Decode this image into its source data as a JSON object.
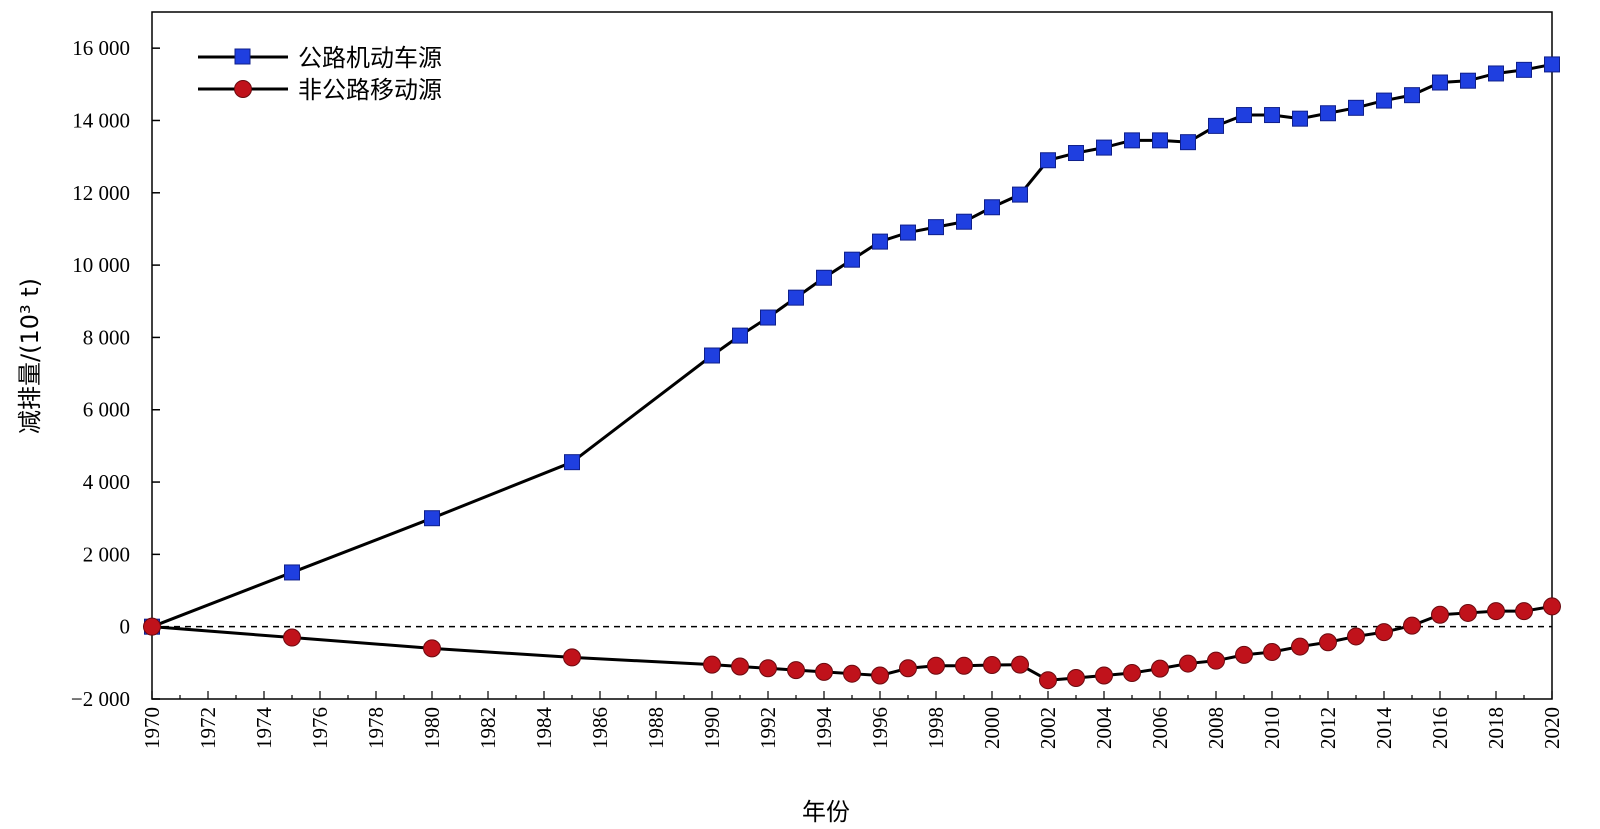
{
  "chart_data": {
    "type": "line",
    "xlabel": "年份",
    "ylabel": "减排量/(10³ t)",
    "xlim": [
      1970,
      2020
    ],
    "ylim": [
      -2000,
      17000
    ],
    "x_ticks": [
      1970,
      1972,
      1974,
      1976,
      1978,
      1980,
      1982,
      1984,
      1986,
      1988,
      1990,
      1992,
      1994,
      1996,
      1998,
      2000,
      2002,
      2004,
      2006,
      2008,
      2010,
      2012,
      2014,
      2016,
      2018,
      2020
    ],
    "y_ticks": [
      -2000,
      0,
      2000,
      4000,
      6000,
      8000,
      10000,
      12000,
      14000,
      16000
    ],
    "y_tick_labels": [
      "−2 000",
      "0",
      "2 000",
      "4 000",
      "6 000",
      "8 000",
      "10 000",
      "12 000",
      "14 000",
      "16 000"
    ],
    "zero_reference_line": "dashed",
    "grid": false,
    "legend_position": "top-left",
    "series": [
      {
        "name": "公路机动车源",
        "marker": "square",
        "marker_color": "#1f3fe0",
        "line_color": "#000000",
        "x": [
          1970,
          1975,
          1980,
          1985,
          1990,
          1991,
          1992,
          1993,
          1994,
          1995,
          1996,
          1997,
          1998,
          1999,
          2000,
          2001,
          2002,
          2003,
          2004,
          2005,
          2006,
          2007,
          2008,
          2009,
          2010,
          2011,
          2012,
          2013,
          2014,
          2015,
          2016,
          2017,
          2018,
          2019,
          2020
        ],
        "values": [
          0,
          1500,
          3000,
          4550,
          7500,
          8050,
          8550,
          9100,
          9650,
          10150,
          10650,
          10900,
          11050,
          11200,
          11600,
          11950,
          12900,
          13100,
          13250,
          13450,
          13450,
          13400,
          13850,
          14150,
          14150,
          14050,
          14200,
          14350,
          14550,
          14700,
          15050,
          15100,
          15300,
          15400,
          15550
        ]
      },
      {
        "name": "非公路移动源",
        "marker": "circle",
        "marker_color": "#c0121b",
        "line_color": "#000000",
        "x": [
          1970,
          1975,
          1980,
          1985,
          1990,
          1991,
          1992,
          1993,
          1994,
          1995,
          1996,
          1997,
          1998,
          1999,
          2000,
          2001,
          2002,
          2003,
          2004,
          2005,
          2006,
          2007,
          2008,
          2009,
          2010,
          2011,
          2012,
          2013,
          2014,
          2015,
          2016,
          2017,
          2018,
          2019,
          2020
        ],
        "values": [
          0,
          -300,
          -600,
          -850,
          -1050,
          -1100,
          -1150,
          -1200,
          -1250,
          -1300,
          -1350,
          -1150,
          -1080,
          -1080,
          -1060,
          -1050,
          -1480,
          -1420,
          -1350,
          -1280,
          -1160,
          -1020,
          -940,
          -780,
          -700,
          -550,
          -430,
          -270,
          -150,
          30,
          330,
          380,
          430,
          430,
          560
        ]
      }
    ]
  }
}
